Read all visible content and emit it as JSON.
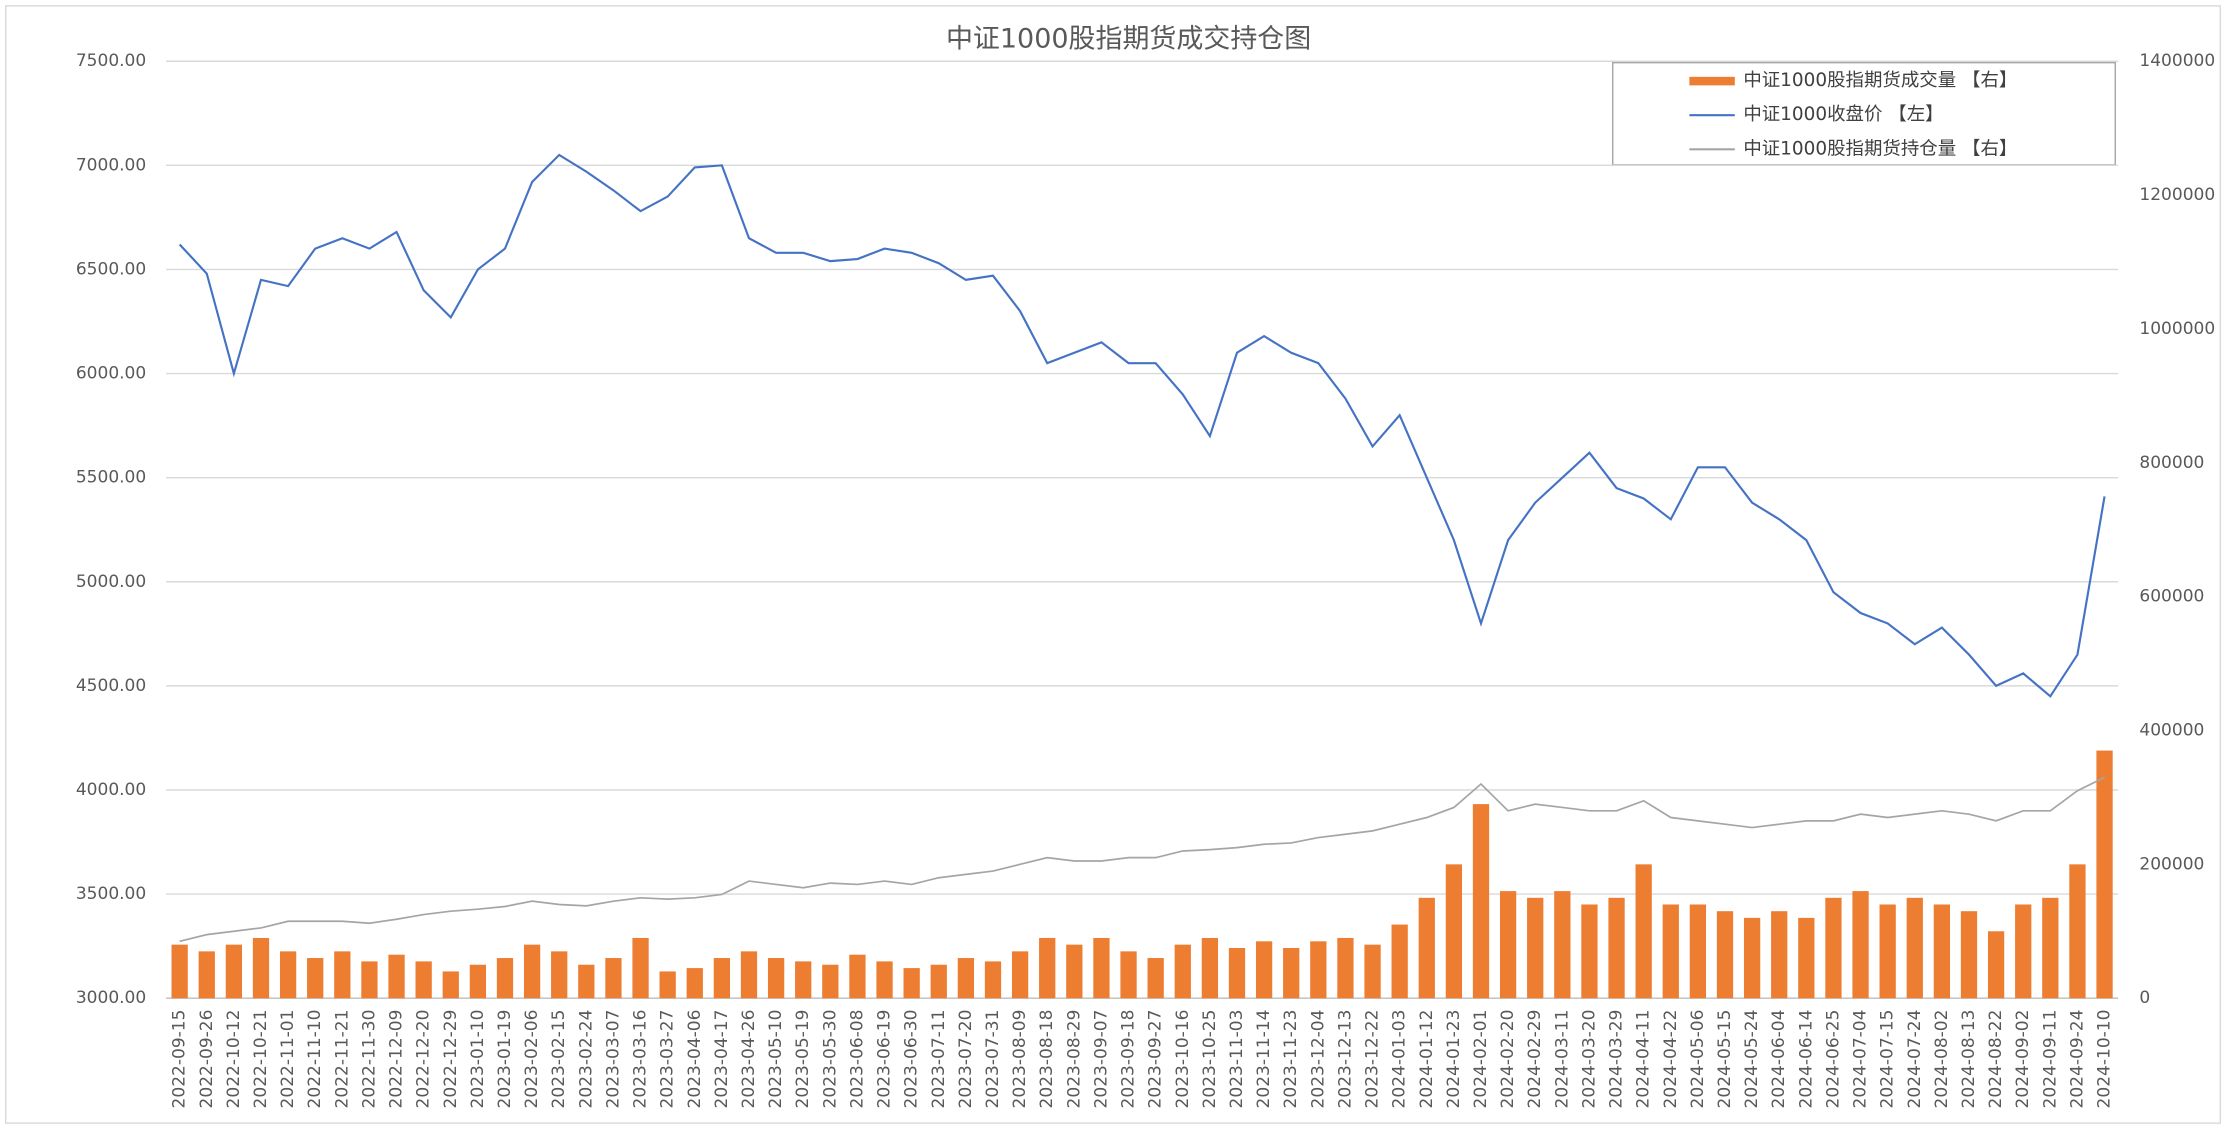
{
  "chart_data": {
    "type": "bar-line",
    "title": "中证1000股指期货成交持仓图",
    "categories": [
      "2022-09-15",
      "2022-09-26",
      "2022-10-12",
      "2022-10-21",
      "2022-11-01",
      "2022-11-10",
      "2022-11-21",
      "2022-11-30",
      "2022-12-09",
      "2022-12-20",
      "2022-12-29",
      "2023-01-10",
      "2023-01-19",
      "2023-02-06",
      "2023-02-15",
      "2023-02-24",
      "2023-03-07",
      "2023-03-16",
      "2023-03-27",
      "2023-04-06",
      "2023-04-17",
      "2023-04-26",
      "2023-05-10",
      "2023-05-19",
      "2023-05-30",
      "2023-06-08",
      "2023-06-19",
      "2023-06-30",
      "2023-07-11",
      "2023-07-20",
      "2023-07-31",
      "2023-08-09",
      "2023-08-18",
      "2023-08-29",
      "2023-09-07",
      "2023-09-18",
      "2023-09-27",
      "2023-10-16",
      "2023-10-25",
      "2023-11-03",
      "2023-11-14",
      "2023-11-23",
      "2023-12-04",
      "2023-12-13",
      "2023-12-22",
      "2024-01-03",
      "2024-01-12",
      "2024-01-23",
      "2024-02-01",
      "2024-02-20",
      "2024-02-29",
      "2024-03-11",
      "2024-03-20",
      "2024-03-29",
      "2024-04-11",
      "2024-04-22",
      "2024-05-06",
      "2024-05-15",
      "2024-05-24",
      "2024-06-04",
      "2024-06-14",
      "2024-06-25",
      "2024-07-04",
      "2024-07-15",
      "2024-07-24",
      "2024-08-02",
      "2024-08-13",
      "2024-08-22",
      "2024-09-02",
      "2024-09-11",
      "2024-09-24",
      "2024-10-10"
    ],
    "series": [
      {
        "name": "中证1000股指期货成交量 【右】",
        "type": "bar",
        "axis": "y2",
        "color": "#ED7D31",
        "values": [
          80000,
          70000,
          80000,
          90000,
          70000,
          60000,
          70000,
          55000,
          65000,
          55000,
          40000,
          50000,
          60000,
          80000,
          70000,
          50000,
          60000,
          90000,
          40000,
          45000,
          60000,
          70000,
          60000,
          55000,
          50000,
          65000,
          55000,
          45000,
          50000,
          60000,
          55000,
          70000,
          90000,
          80000,
          90000,
          70000,
          60000,
          80000,
          90000,
          75000,
          85000,
          75000,
          85000,
          90000,
          80000,
          110000,
          150000,
          200000,
          290000,
          160000,
          150000,
          160000,
          140000,
          150000,
          200000,
          140000,
          140000,
          130000,
          120000,
          130000,
          120000,
          150000,
          160000,
          140000,
          150000,
          140000,
          130000,
          100000,
          140000,
          150000,
          200000,
          370000
        ]
      },
      {
        "name": "中证1000收盘价 【左】",
        "type": "line",
        "color": "#4472C4",
        "values": [
          6620,
          6480,
          6000,
          6450,
          6420,
          6600,
          6650,
          6600,
          6680,
          6400,
          6270,
          6500,
          6600,
          6920,
          7050,
          6970,
          6880,
          6780,
          6850,
          6990,
          7000,
          6650,
          6580,
          6580,
          6540,
          6550,
          6600,
          6580,
          6530,
          6450,
          6470,
          6300,
          6050,
          6100,
          6150,
          6050,
          6050,
          5900,
          5700,
          6100,
          6180,
          6100,
          6050,
          5880,
          5650,
          5800,
          5500,
          5200,
          4800,
          5200,
          5380,
          5500,
          5620,
          5450,
          5400,
          5300,
          5550,
          5550,
          5380,
          5300,
          5200,
          4950,
          4850,
          4800,
          4700,
          4780,
          4650,
          4500,
          4560,
          4450,
          4650,
          5410
        ]
      },
      {
        "name": "中证1000股指期货持仓量 【右】",
        "type": "line",
        "axis": "y2",
        "color": "#A5A5A5",
        "values": [
          85000,
          95000,
          100000,
          105000,
          115000,
          115000,
          115000,
          112000,
          118000,
          125000,
          130000,
          133000,
          137000,
          145000,
          140000,
          138000,
          145000,
          150000,
          148000,
          150000,
          155000,
          175000,
          170000,
          165000,
          172000,
          170000,
          175000,
          170000,
          180000,
          185000,
          190000,
          200000,
          210000,
          205000,
          205000,
          210000,
          210000,
          220000,
          222000,
          225000,
          230000,
          232000,
          240000,
          245000,
          250000,
          260000,
          270000,
          285000,
          320000,
          280000,
          290000,
          285000,
          280000,
          280000,
          295000,
          270000,
          265000,
          260000,
          255000,
          260000,
          265000,
          265000,
          275000,
          270000,
          275000,
          280000,
          275000,
          265000,
          280000,
          280000,
          310000,
          330000
        ]
      }
    ],
    "ylim": [
      3000,
      7500
    ],
    "yticks": [
      {
        "value": 3000,
        "label": "3000.00"
      },
      {
        "value": 3500,
        "label": "3500.00"
      },
      {
        "value": 4000,
        "label": "4000.00"
      },
      {
        "value": 4500,
        "label": "4500.00"
      },
      {
        "value": 5000,
        "label": "5000.00"
      },
      {
        "value": 5500,
        "label": "5500.00"
      },
      {
        "value": 6000,
        "label": "6000.00"
      },
      {
        "value": 6500,
        "label": "6500.00"
      },
      {
        "value": 7000,
        "label": "7000.00"
      },
      {
        "value": 7500,
        "label": "7500.00"
      }
    ],
    "y2lim": [
      0,
      1400000
    ],
    "y2ticks": [
      0,
      200000,
      400000,
      600000,
      800000,
      1000000,
      1200000,
      1400000
    ],
    "grid": true,
    "legend": "upper right"
  }
}
